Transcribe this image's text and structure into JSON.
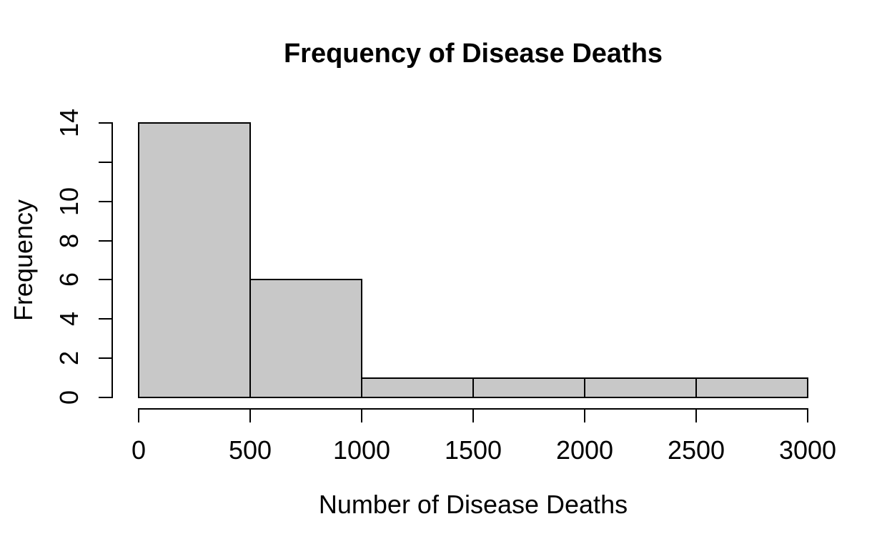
{
  "chart_data": {
    "type": "bar",
    "subtype": "histogram",
    "title": "Frequency of Disease Deaths",
    "xlabel": "Number of Disease Deaths",
    "ylabel": "Frequency",
    "bin_edges": [
      0,
      500,
      1000,
      1500,
      2000,
      2500,
      3000
    ],
    "counts": [
      14,
      6,
      1,
      1,
      1,
      1
    ],
    "xlim": [
      0,
      3000
    ],
    "ylim": [
      0,
      14
    ],
    "x_ticks": [
      0,
      500,
      1000,
      1500,
      2000,
      2500,
      3000
    ],
    "x_tick_labels": [
      "0",
      "500",
      "1000",
      "1500",
      "2000",
      "2500",
      "3000"
    ],
    "y_ticks": [
      0,
      2,
      4,
      6,
      8,
      10,
      12,
      14
    ],
    "y_tick_labels": [
      "0",
      "2",
      "4",
      "6",
      "8",
      "10",
      "",
      "14"
    ],
    "grid": false,
    "legend": "none",
    "bar_fill": "#c8c8c8",
    "bar_stroke": "#000000",
    "axis_color": "#000000",
    "background": "#ffffff"
  }
}
